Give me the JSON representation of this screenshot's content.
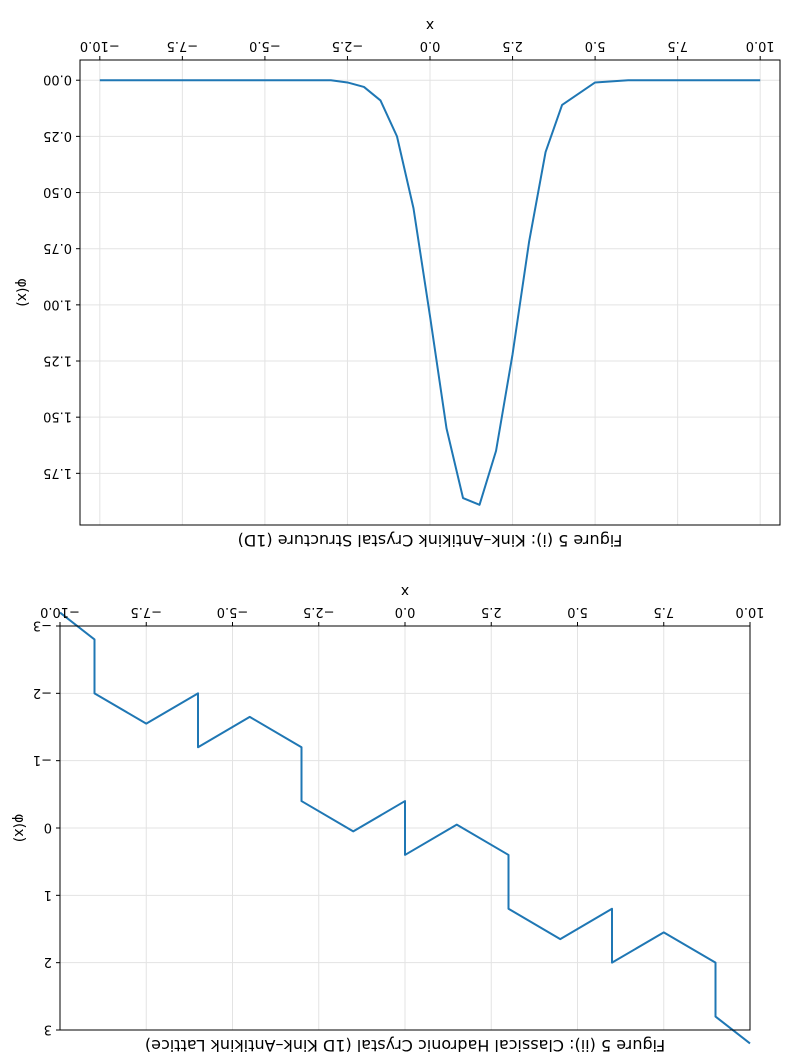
{
  "chart_data": [
    {
      "type": "line",
      "title": "Figure 5 (i): Kink–Antikink Crystal Structure (1D)",
      "xlabel": "x",
      "ylabel": "φ(x)",
      "xlim": [
        -10.6,
        10.6
      ],
      "ylim": [
        -0.09,
        1.98
      ],
      "x_ticks": [
        "−10.0",
        "−7.5",
        "−5.0",
        "−2.5",
        "0.0",
        "2.5",
        "5.0",
        "7.5",
        "10.0"
      ],
      "y_ticks": [
        "0.00",
        "0.25",
        "0.50",
        "0.75",
        "1.00",
        "1.25",
        "1.50",
        "1.75"
      ],
      "grid": true,
      "color": "#1f77b4",
      "series": [
        {
          "x": [
            -10.0,
            -8.0,
            -6.0,
            -4.0,
            -3.0,
            -2.5,
            -2.0,
            -1.5,
            -1.0,
            -0.5,
            0.0,
            0.5,
            1.0,
            1.5,
            2.0,
            2.5,
            3.0,
            3.5,
            4.0,
            5.0,
            6.0,
            8.0,
            10.0
          ],
          "y": [
            0.0,
            0.0,
            0.0,
            0.0,
            0.0,
            0.01,
            0.03,
            0.09,
            0.25,
            0.57,
            1.05,
            1.55,
            1.86,
            1.89,
            1.65,
            1.22,
            0.72,
            0.32,
            0.11,
            0.01,
            0.0,
            0.0,
            0.0
          ]
        }
      ]
    },
    {
      "type": "line",
      "title": "Figure 5 (ii): Classical Hadronic Crystal (1D Kink–Antikink Lattice)",
      "xlabel": "x",
      "ylabel": "φ(x)",
      "xlim": [
        -10.0,
        10.0
      ],
      "ylim": [
        -3.0,
        3.0
      ],
      "x_ticks": [
        "−10.0",
        "−7.5",
        "−5.0",
        "−2.5",
        "0.0",
        "2.5",
        "5.0",
        "7.5",
        "10.0"
      ],
      "y_ticks": [
        "−3",
        "−2",
        "−1",
        "0",
        "1",
        "2",
        "3"
      ],
      "grid": true,
      "color": "#1f77b4",
      "series": [
        {
          "x": [
            -10.0,
            -9.0,
            -9.0,
            -7.5,
            -6.0,
            -6.0,
            -4.5,
            -3.0,
            -3.0,
            -1.5,
            0.0,
            0.0,
            1.5,
            3.0,
            3.0,
            4.5,
            6.0,
            6.0,
            7.5,
            9.0,
            9.0,
            10.0
          ],
          "y": [
            -3.2,
            -2.8,
            -2.0,
            -1.55,
            -2.0,
            -1.2,
            -1.65,
            -1.2,
            -0.4,
            0.05,
            -0.4,
            0.4,
            -0.05,
            0.4,
            1.2,
            1.65,
            1.2,
            2.0,
            1.55,
            2.0,
            2.8,
            3.2
          ]
        }
      ]
    }
  ]
}
